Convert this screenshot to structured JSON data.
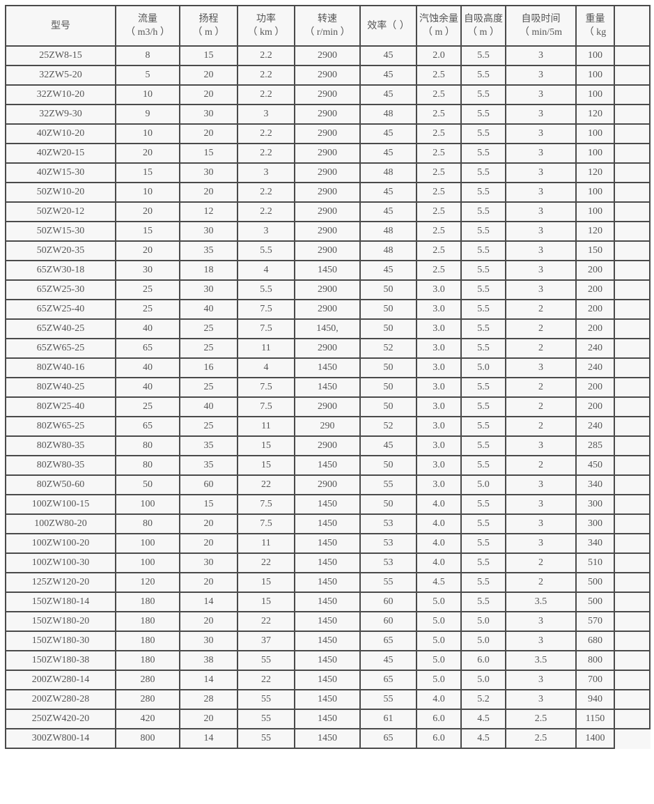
{
  "headers": [
    {
      "label": "型号",
      "unit": ""
    },
    {
      "label": "流量",
      "unit": "（ m3/h ）"
    },
    {
      "label": "扬程",
      "unit": "（ m ）"
    },
    {
      "label": "功率",
      "unit": "（ km ）"
    },
    {
      "label": "转速",
      "unit": "（ r/min ）"
    },
    {
      "label": "效率（ ）",
      "unit": ""
    },
    {
      "label": "汽蚀余量",
      "unit": "（ m ）"
    },
    {
      "label": "自吸高度",
      "unit": "（ m ）"
    },
    {
      "label": "自吸时间",
      "unit": "（ min/5m"
    },
    {
      "label": "重量",
      "unit": "（ kg"
    },
    {
      "label": "",
      "unit": ""
    }
  ],
  "rows": [
    [
      "25ZW8-15",
      "8",
      "15",
      "2.2",
      "2900",
      "45",
      "2.0",
      "5.5",
      "3",
      "100"
    ],
    [
      "32ZW5-20",
      "5",
      "20",
      "2.2",
      "2900",
      "45",
      "2.5",
      "5.5",
      "3",
      "100"
    ],
    [
      "32ZW10-20",
      "10",
      "20",
      "2.2",
      "2900",
      "45",
      "2.5",
      "5.5",
      "3",
      "100"
    ],
    [
      "32ZW9-30",
      "9",
      "30",
      "3",
      "2900",
      "48",
      "2.5",
      "5.5",
      "3",
      "120"
    ],
    [
      "40ZW10-20",
      "10",
      "20",
      "2.2",
      "2900",
      "45",
      "2.5",
      "5.5",
      "3",
      "100"
    ],
    [
      "40ZW20-15",
      "20",
      "15",
      "2.2",
      "2900",
      "45",
      "2.5",
      "5.5",
      "3",
      "100"
    ],
    [
      "40ZW15-30",
      "15",
      "30",
      "3",
      "2900",
      "48",
      "2.5",
      "5.5",
      "3",
      "120"
    ],
    [
      "50ZW10-20",
      "10",
      "20",
      "2.2",
      "2900",
      "45",
      "2.5",
      "5.5",
      "3",
      "100"
    ],
    [
      "50ZW20-12",
      "20",
      "12",
      "2.2",
      "2900",
      "45",
      "2.5",
      "5.5",
      "3",
      "100"
    ],
    [
      "50ZW15-30",
      "15",
      "30",
      "3",
      "2900",
      "48",
      "2.5",
      "5.5",
      "3",
      "120"
    ],
    [
      "50ZW20-35",
      "20",
      "35",
      "5.5",
      "2900",
      "48",
      "2.5",
      "5.5",
      "3",
      "150"
    ],
    [
      "65ZW30-18",
      "30",
      "18",
      "4",
      "1450",
      "45",
      "2.5",
      "5.5",
      "3",
      "200"
    ],
    [
      "65ZW25-30",
      "25",
      "30",
      "5.5",
      "2900",
      "50",
      "3.0",
      "5.5",
      "3",
      "200"
    ],
    [
      "65ZW25-40",
      "25",
      "40",
      "7.5",
      "2900",
      "50",
      "3.0",
      "5.5",
      "2",
      "200"
    ],
    [
      "65ZW40-25",
      "40",
      "25",
      "7.5",
      "1450,",
      "50",
      "3.0",
      "5.5",
      "2",
      "200"
    ],
    [
      "65ZW65-25",
      "65",
      "25",
      "11",
      "2900",
      "52",
      "3.0",
      "5.5",
      "2",
      "240"
    ],
    [
      "80ZW40-16",
      "40",
      "16",
      "4",
      "1450",
      "50",
      "3.0",
      "5.0",
      "3",
      "240"
    ],
    [
      "80ZW40-25",
      "40",
      "25",
      "7.5",
      "1450",
      "50",
      "3.0",
      "5.5",
      "2",
      "200"
    ],
    [
      "80ZW25-40",
      "25",
      "40",
      "7.5",
      "2900",
      "50",
      "3.0",
      "5.5",
      "2",
      "200"
    ],
    [
      "80ZW65-25",
      "65",
      "25",
      "11",
      "290",
      "52",
      "3.0",
      "5.5",
      "2",
      "240"
    ],
    [
      "80ZW80-35",
      "80",
      "35",
      "15",
      "2900",
      "45",
      "3.0",
      "5.5",
      "3",
      "285"
    ],
    [
      "80ZW80-35",
      "80",
      "35",
      "15",
      "1450",
      "50",
      "3.0",
      "5.5",
      "2",
      "450"
    ],
    [
      "80ZW50-60",
      "50",
      "60",
      "22",
      "2900",
      "55",
      "3.0",
      "5.0",
      "3",
      "340"
    ],
    [
      "100ZW100-15",
      "100",
      "15",
      "7.5",
      "1450",
      "50",
      "4.0",
      "5.5",
      "3",
      "300"
    ],
    [
      "100ZW80-20",
      "80",
      "20",
      "7.5",
      "1450",
      "53",
      "4.0",
      "5.5",
      "3",
      "300"
    ],
    [
      "100ZW100-20",
      "100",
      "20",
      "11",
      "1450",
      "53",
      "4.0",
      "5.5",
      "3",
      "340"
    ],
    [
      "100ZW100-30",
      "100",
      "30",
      "22",
      "1450",
      "53",
      "4.0",
      "5.5",
      "2",
      "510"
    ],
    [
      "125ZW120-20",
      "120",
      "20",
      "15",
      "1450",
      "55",
      "4.5",
      "5.5",
      "2",
      "500"
    ],
    [
      "150ZW180-14",
      "180",
      "14",
      "15",
      "1450",
      "60",
      "5.0",
      "5.5",
      "3.5",
      "500"
    ],
    [
      "150ZW180-20",
      "180",
      "20",
      "22",
      "1450",
      "60",
      "5.0",
      "5.0",
      "3",
      "570"
    ],
    [
      "150ZW180-30",
      "180",
      "30",
      "37",
      "1450",
      "65",
      "5.0",
      "5.0",
      "3",
      "680"
    ],
    [
      "150ZW180-38",
      "180",
      "38",
      "55",
      "1450",
      "45",
      "5.0",
      "6.0",
      "3.5",
      "800"
    ],
    [
      "200ZW280-14",
      "280",
      "14",
      "22",
      "1450",
      "65",
      "5.0",
      "5.0",
      "3",
      "700"
    ],
    [
      "200ZW280-28",
      "280",
      "28",
      "55",
      "1450",
      "55",
      "4.0",
      "5.2",
      "3",
      "940"
    ],
    [
      "250ZW420-20",
      "420",
      "20",
      "55",
      "1450",
      "61",
      "6.0",
      "4.5",
      "2.5",
      "1150"
    ],
    [
      "300ZW800-14",
      "800",
      "14",
      "55",
      "1450",
      "65",
      "6.0",
      "4.5",
      "2.5",
      "1400"
    ]
  ]
}
